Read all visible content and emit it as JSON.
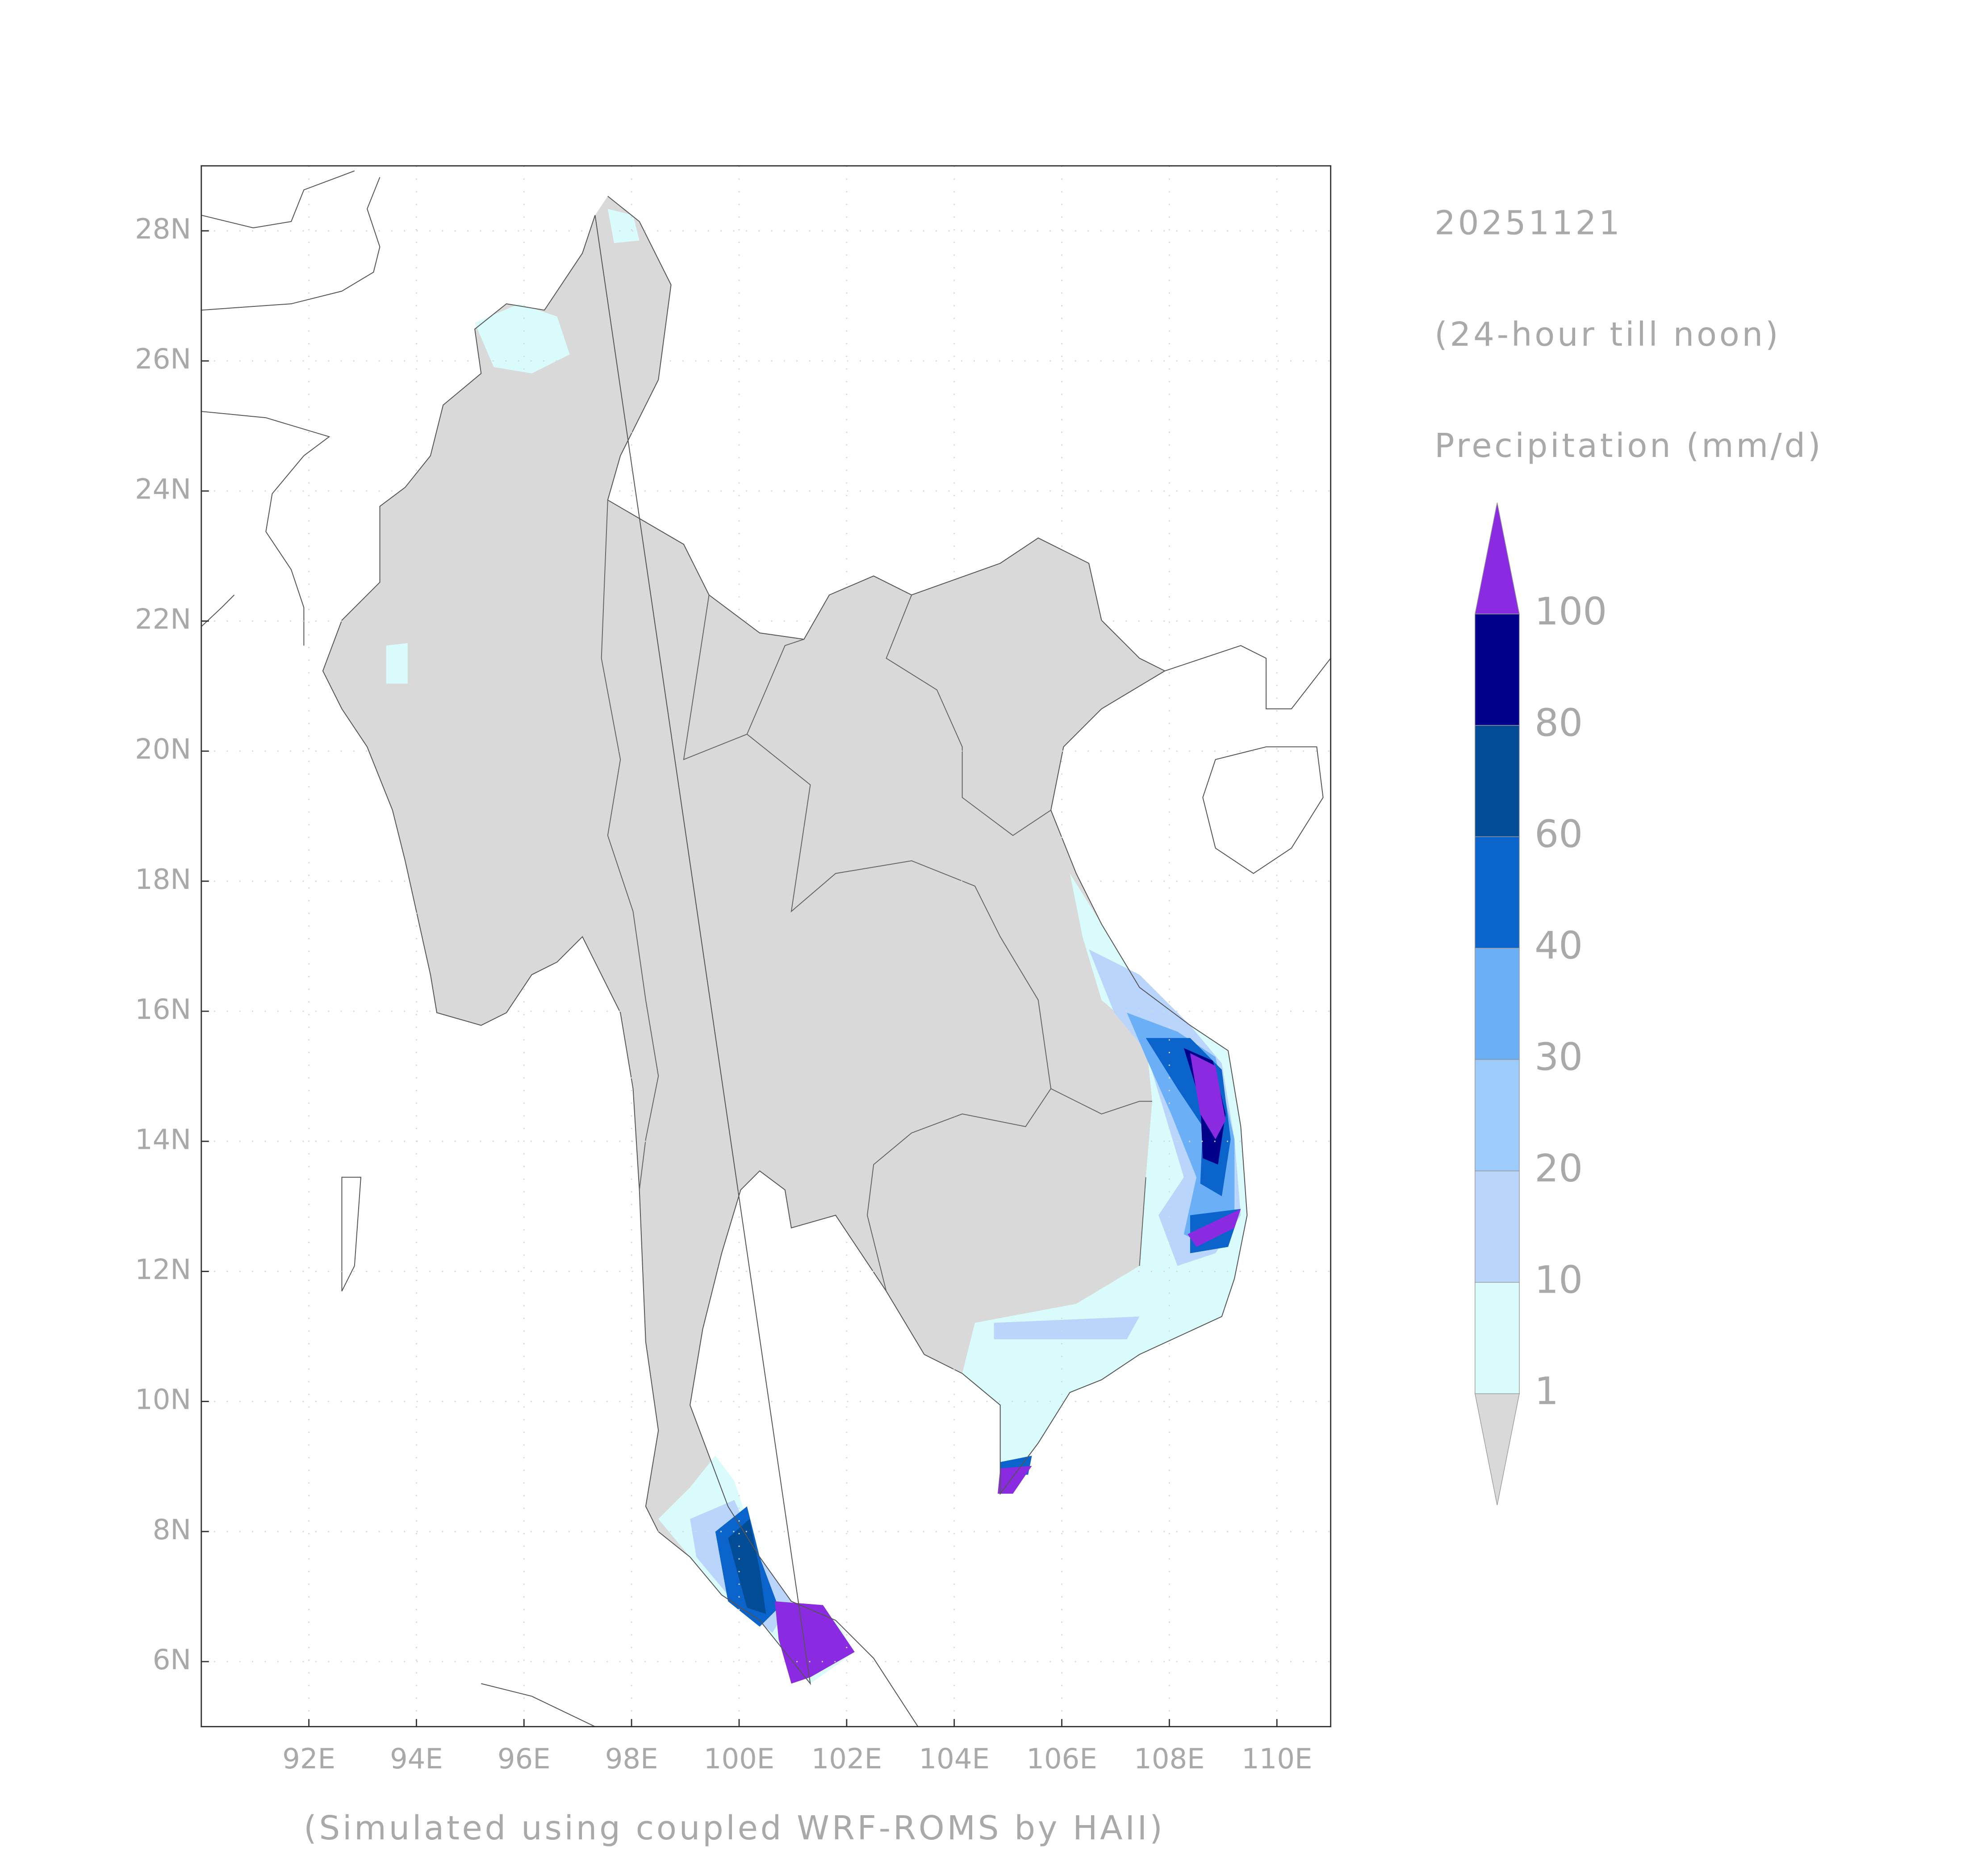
{
  "chart_data": {
    "type": "map",
    "title": "20251121",
    "subtitle": "(24-hour till noon)",
    "variable_label": "Precipitation (mm/d)",
    "footer": "(Simulated using coupled WRF-ROMS by HAII)",
    "xlim": [
      90,
      111
    ],
    "ylim": [
      5,
      29
    ],
    "xticks": [
      {
        "value": 92,
        "label": "92E"
      },
      {
        "value": 94,
        "label": "94E"
      },
      {
        "value": 96,
        "label": "96E"
      },
      {
        "value": 98,
        "label": "98E"
      },
      {
        "value": 100,
        "label": "100E"
      },
      {
        "value": 102,
        "label": "102E"
      },
      {
        "value": 104,
        "label": "104E"
      },
      {
        "value": 106,
        "label": "106E"
      },
      {
        "value": 108,
        "label": "108E"
      },
      {
        "value": 110,
        "label": "110E"
      }
    ],
    "yticks": [
      {
        "value": 6,
        "label": "6N"
      },
      {
        "value": 8,
        "label": "8N"
      },
      {
        "value": 10,
        "label": "10N"
      },
      {
        "value": 12,
        "label": "12N"
      },
      {
        "value": 14,
        "label": "14N"
      },
      {
        "value": 16,
        "label": "16N"
      },
      {
        "value": 18,
        "label": "18N"
      },
      {
        "value": 20,
        "label": "20N"
      },
      {
        "value": 22,
        "label": "22N"
      },
      {
        "value": 24,
        "label": "24N"
      },
      {
        "value": 26,
        "label": "26N"
      },
      {
        "value": 28,
        "label": "28N"
      }
    ],
    "grid": true,
    "levels": [
      1,
      10,
      20,
      30,
      40,
      60,
      80,
      100
    ],
    "colors": [
      "#d9d9d9",
      "#d9fbfb",
      "#b9d5fb",
      "#9dcbfb",
      "#6bb0f7",
      "#0b63cc",
      "#034d96",
      "#00008b",
      "#8a2be2"
    ]
  }
}
